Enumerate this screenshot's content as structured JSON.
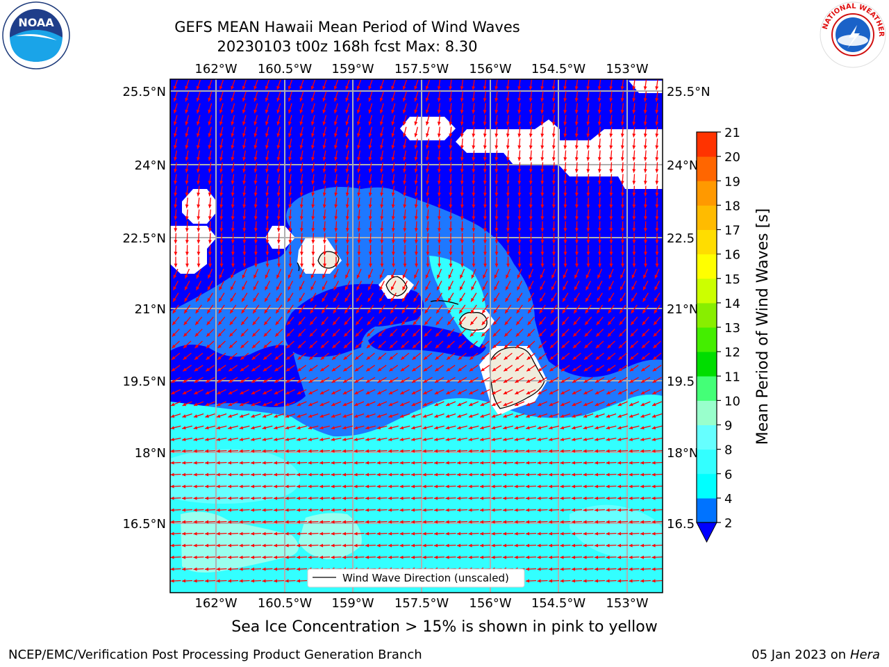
{
  "title_line1": "GEFS MEAN Hawaii Mean Period of Wind Waves",
  "title_line2": "20230103 t00z 168h fcst   Max: 8.30",
  "lon_labels": [
    "162°W",
    "160.5°W",
    "159°W",
    "157.5°W",
    "156°W",
    "154.5°W",
    "153°W"
  ],
  "lat_labels": [
    "25.5°N",
    "24°N",
    "22.5°N",
    "21°N",
    "19.5°N",
    "18°N",
    "16.5°N"
  ],
  "lat_labels_right": [
    "25.5°N",
    "24°N",
    "22.5",
    "21°N",
    "19.5",
    "18°N",
    "16.5"
  ],
  "legend_label": "Wind Wave Direction (unscaled)",
  "colorbar": {
    "label": "Mean Period of Wind Waves [s]",
    "ticks": [
      "2",
      "4",
      "6",
      "8",
      "9",
      "10",
      "11",
      "12",
      "13",
      "14",
      "15",
      "16",
      "17",
      "18",
      "19",
      "20",
      "21"
    ],
    "colors": [
      "#0073ff",
      "#00ffff",
      "#33ffff",
      "#66ffff",
      "#99ffcc",
      "#44ff77",
      "#00dd00",
      "#44ee00",
      "#88ee00",
      "#ccff00",
      "#ffff00",
      "#ffdd00",
      "#ffbb00",
      "#ff9900",
      "#ff6600",
      "#ff3300",
      "#ff0000"
    ],
    "under_color": "#0000ff"
  },
  "caption": "Sea Ice Concentration > 15% is shown in pink to yellow",
  "footer_left": "NCEP/EMC/Verification Post Processing Product Generation Branch",
  "footer_right_date": "05 Jan 2023 on ",
  "footer_right_host": "Hera",
  "logos": {
    "left": "noaa-logo",
    "right": "national-weather-service-logo",
    "noaa_text": "NOAA",
    "nws_text": "NATIONAL WEATHER SERVICE"
  },
  "colors": {
    "deep": "#0000ff",
    "mid": "#1e78ff",
    "cyan": "#33ffff",
    "pale": "#66ffff",
    "land": "#f0ecdc",
    "arrow": "#ff0000",
    "grid": "#b0b0b0"
  }
}
